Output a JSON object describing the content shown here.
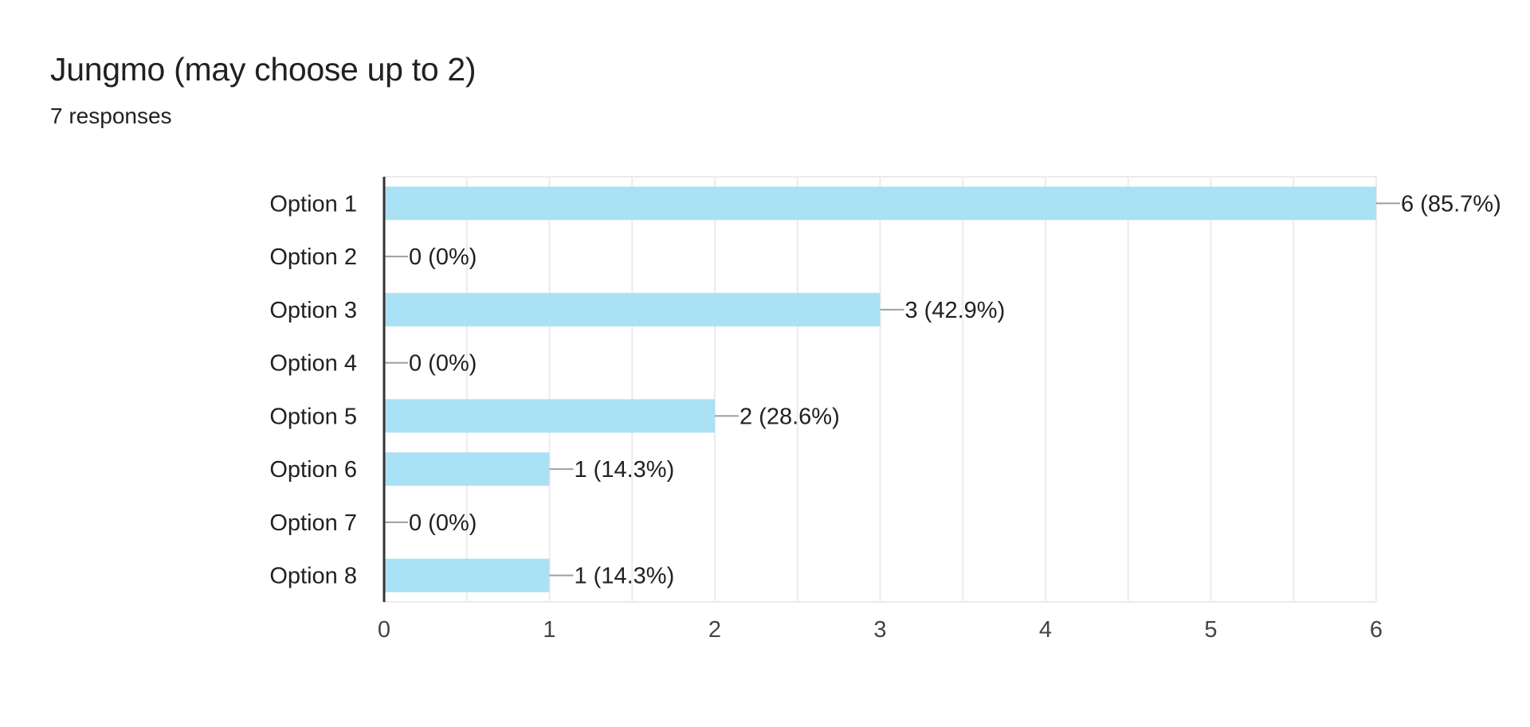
{
  "header": {
    "title": "Jungmo (may choose up to 2)",
    "responses": "7 responses"
  },
  "chart_data": {
    "type": "bar",
    "orientation": "horizontal",
    "title": "Jungmo (may choose up to 2)",
    "subtitle": "7 responses",
    "categories": [
      "Option 1",
      "Option 2",
      "Option 3",
      "Option 4",
      "Option 5",
      "Option 6",
      "Option 7",
      "Option 8"
    ],
    "values": [
      6,
      0,
      3,
      0,
      2,
      1,
      0,
      1
    ],
    "data_labels": [
      "6 (85.7%)",
      "0 (0%)",
      "3 (42.9%)",
      "0 (0%)",
      "2 (28.6%)",
      "1 (14.3%)",
      "0 (0%)",
      "1 (14.3%)"
    ],
    "xlim": [
      0,
      6
    ],
    "xticks": [
      0,
      1,
      2,
      3,
      4,
      5,
      6
    ],
    "xlabel": "",
    "ylabel": "",
    "grid": true,
    "legend": "none",
    "colors": {
      "bar": "#abe1f4",
      "grid": "#ebebeb",
      "axis": "#333333",
      "leader": "#9e9e9e"
    }
  }
}
